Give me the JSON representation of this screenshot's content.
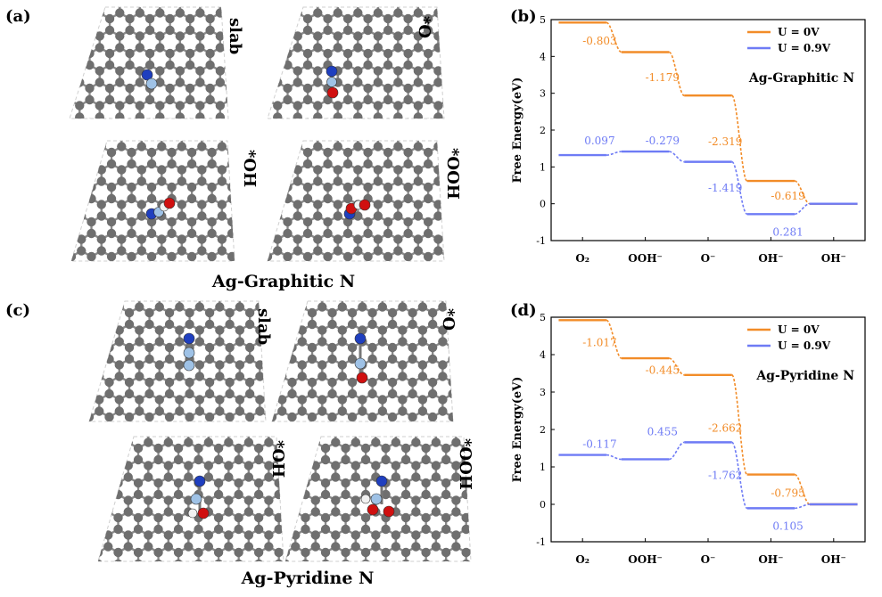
{
  "figure": {
    "panel_labels": [
      "(a)",
      "(b)",
      "(c)",
      "(d)"
    ],
    "captions": [
      "Ag-Graphitic N",
      "Ag-Pyridine N"
    ],
    "structure_labels": [
      "slab",
      "*O",
      "*OH",
      "*OOH"
    ]
  },
  "colors": {
    "u0": "#F28C28",
    "u09": "#6E7BF5",
    "carbon": "#6f6f6f",
    "nitrogen": "#1f3fbf",
    "silver": "#9fc2e6",
    "oxygen": "#d01010",
    "hydrogen": "#f2f2f2"
  },
  "chart_data": [
    {
      "type": "line",
      "title": "Ag-Graphitic N",
      "ylabel": "Free Energy(eV)",
      "xlabel": "",
      "ylim": [
        -1,
        5
      ],
      "yticks": [
        "-1",
        "0",
        "1",
        "2",
        "3",
        "4",
        "5"
      ],
      "categories": [
        "O₂",
        "OOH⁻",
        "O⁻",
        "OH⁻",
        "OH⁻"
      ],
      "legend_position": "top-right",
      "series": [
        {
          "name": "U = 0V",
          "values": [
            4.92,
            4.117,
            2.938,
            0.619,
            0.0
          ]
        },
        {
          "name": "U = 0.9V",
          "values": [
            1.32,
            1.417,
            1.138,
            -0.281,
            0.0
          ]
        }
      ],
      "step_labels": [
        {
          "series": 0,
          "text": "-0.803"
        },
        {
          "series": 0,
          "text": "-1.179"
        },
        {
          "series": 0,
          "text": "-2.319"
        },
        {
          "series": 0,
          "text": "-0.619"
        },
        {
          "series": 1,
          "text": "0.097"
        },
        {
          "series": 1,
          "text": "-0.279"
        },
        {
          "series": 1,
          "text": "-1.419"
        },
        {
          "series": 1,
          "text": "0.281"
        }
      ]
    },
    {
      "type": "line",
      "title": "Ag-Pyridine N",
      "ylabel": "Free Energy(eV)",
      "xlabel": "",
      "ylim": [
        -1,
        5
      ],
      "yticks": [
        "-1",
        "0",
        "1",
        "2",
        "3",
        "4",
        "5"
      ],
      "categories": [
        "O₂",
        "OOH⁻",
        "O⁻",
        "OH⁻",
        "OH⁻"
      ],
      "legend_position": "top-right",
      "series": [
        {
          "name": "U = 0V",
          "values": [
            4.92,
            3.903,
            3.458,
            0.796,
            0.0
          ]
        },
        {
          "name": "U = 0.9V",
          "values": [
            1.32,
            1.203,
            1.658,
            -0.104,
            0.0
          ]
        }
      ],
      "step_labels": [
        {
          "series": 0,
          "text": "-1.017"
        },
        {
          "series": 0,
          "text": "-0.445"
        },
        {
          "series": 0,
          "text": "-2.662"
        },
        {
          "series": 0,
          "text": "-0.795"
        },
        {
          "series": 1,
          "text": "-0.117"
        },
        {
          "series": 1,
          "text": "0.455"
        },
        {
          "series": 1,
          "text": "-1.762"
        },
        {
          "series": 1,
          "text": "0.105"
        }
      ]
    }
  ]
}
